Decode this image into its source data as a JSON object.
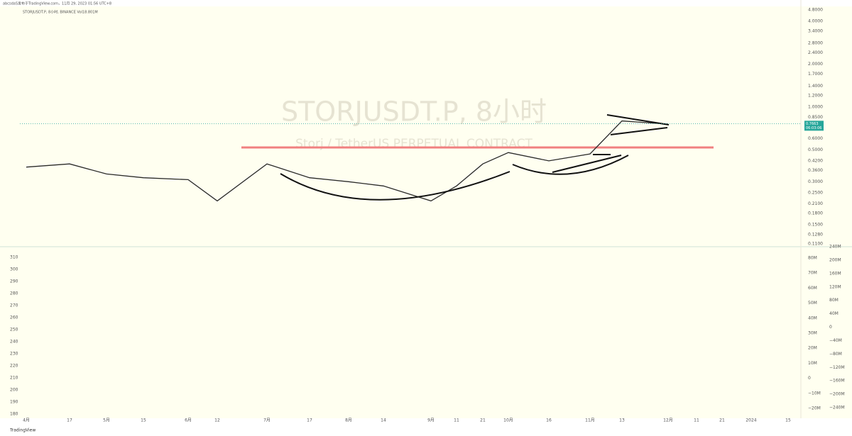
{
  "header": {
    "publisher": "abcsdaS发布于TradingView.com，11月 29, 2023 01:56 UTC+8",
    "symbol_info": "STORJUSDT.P, 8小时, BINANCE  Vol18.801M",
    "watermark": "STORJUSDT.P, 8小时",
    "watermark_sub": "Storj / TetherUS PERPETUAL CONTRACT"
  },
  "footer": {
    "brand": "TradingView"
  },
  "chart_data": {
    "type": "line",
    "log_scale": true,
    "color": "#2a2a2a",
    "categories": [
      "4月",
      "17",
      "5月",
      "15",
      "6月",
      "12",
      "7月",
      "17",
      "8月",
      "14",
      "9月",
      "11",
      "21",
      "10月",
      "16",
      "11月",
      "13",
      "12月",
      "11",
      "21",
      "2024",
      "15"
    ],
    "series": [
      {
        "name": "STORJUSDT.P",
        "color": "#2a2a2a",
        "values": [
          0.38,
          0.4,
          0.34,
          0.32,
          0.31,
          0.22,
          0.4,
          0.32,
          0.3,
          0.28,
          0.22,
          0.28,
          0.4,
          0.48,
          0.42,
          0.47,
          0.8,
          0.76,
          null,
          null,
          null,
          null
        ]
      }
    ],
    "ylim": [
      0.11,
      4.8
    ],
    "yticks": [
      {
        "value": 4.8,
        "label": "4.8000"
      },
      {
        "value": 4,
        "label": "4.0000"
      },
      {
        "value": 3.4,
        "label": "3.4000"
      },
      {
        "value": 2.8,
        "label": "2.8000"
      },
      {
        "value": 2.4,
        "label": "2.4000"
      },
      {
        "value": 2,
        "label": "2.0000"
      },
      {
        "value": 1.7,
        "label": "1.7000"
      },
      {
        "value": 1.4,
        "label": "1.4000"
      },
      {
        "value": 1.2,
        "label": "1.2000"
      },
      {
        "value": 1,
        "label": "1.0000"
      },
      {
        "value": 0.85,
        "label": "0.8500"
      },
      {
        "value": 0.6,
        "label": "0.6000"
      },
      {
        "value": 0.5,
        "label": "0.5000"
      },
      {
        "value": 0.42,
        "label": "0.4200"
      },
      {
        "value": 0.36,
        "label": "0.3600"
      },
      {
        "value": 0.3,
        "label": "0.3000"
      },
      {
        "value": 0.25,
        "label": "0.2500"
      },
      {
        "value": 0.21,
        "label": "0.2100"
      },
      {
        "value": 0.18,
        "label": "0.1800"
      },
      {
        "value": 0.15,
        "label": "0.1500"
      },
      {
        "value": 0.128,
        "label": "0.1280"
      },
      {
        "value": 0.11,
        "label": "0.1100"
      }
    ],
    "last_price": 0.7663,
    "countdown": "06:03:06",
    "last_price_color": "#26a69a"
  },
  "lower_panel": {
    "left_lim": [
      180,
      310
    ],
    "left_ticks": [
      310,
      300,
      290,
      280,
      270,
      260,
      250,
      240,
      230,
      220,
      210,
      200,
      190,
      180
    ],
    "mid_lim": [
      -20000000,
      80000000
    ],
    "mid_ticks": [
      {
        "value": 80000000,
        "label": "80M"
      },
      {
        "value": 70000000,
        "label": "70M"
      },
      {
        "value": 60000000,
        "label": "60M"
      },
      {
        "value": 50000000,
        "label": "50M"
      },
      {
        "value": 40000000,
        "label": "40M"
      },
      {
        "value": 30000000,
        "label": "30M"
      },
      {
        "value": 20000000,
        "label": "20M"
      },
      {
        "value": 10000000,
        "label": "10M"
      },
      0,
      {
        "value": -10000000,
        "label": "−10M"
      },
      {
        "value": -20000000,
        "label": "−20M"
      }
    ],
    "right_lim": [
      -240000000,
      240000000
    ],
    "right_ticks": [
      {
        "value": 240000000,
        "label": "240M"
      },
      {
        "value": 200000000,
        "label": "200M"
      },
      {
        "value": 160000000,
        "label": "160M"
      },
      {
        "value": 120000000,
        "label": "120M"
      },
      {
        "value": 80000000,
        "label": "80M"
      },
      {
        "value": 40000000,
        "label": "40M"
      },
      0,
      {
        "value": -40000000,
        "label": "−40M"
      },
      {
        "value": -80000000,
        "label": "−80M"
      },
      {
        "value": -120000000,
        "label": "−120M"
      },
      {
        "value": -160000000,
        "label": "−160M"
      },
      {
        "value": -200000000,
        "label": "−200M"
      },
      {
        "value": -240000000,
        "label": "−240M"
      }
    ]
  }
}
